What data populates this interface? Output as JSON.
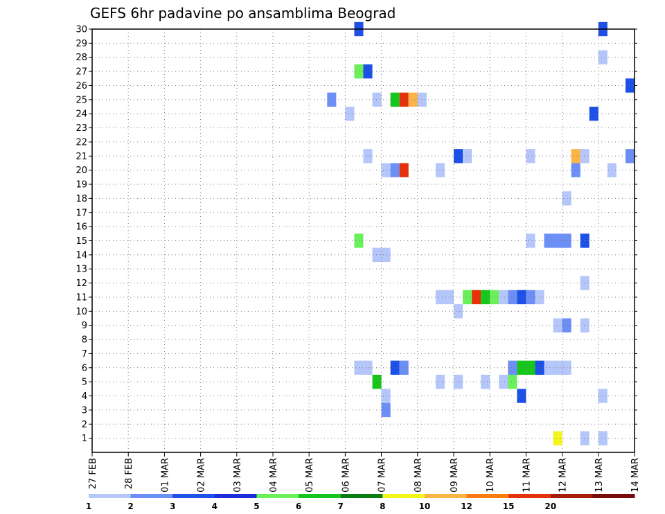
{
  "chart_data": {
    "type": "heatmap",
    "title": "GEFS 6hr padavine po ansamblima Beograd",
    "xlabel": "",
    "ylabel": "",
    "grid": true,
    "x_tick_labels": [
      "27 FEB",
      "28 FEB",
      "01 MAR",
      "02 MAR",
      "03 MAR",
      "04 MAR",
      "05 MAR",
      "06 MAR",
      "07 MAR",
      "08 MAR",
      "09 MAR",
      "10 MAR",
      "11 MAR",
      "12 MAR",
      "13 MAR",
      "14 MAR"
    ],
    "y_tick_labels": [
      "1",
      "2",
      "3",
      "4",
      "5",
      "6",
      "7",
      "8",
      "9",
      "10",
      "11",
      "12",
      "13",
      "14",
      "15",
      "16",
      "17",
      "18",
      "19",
      "20",
      "21",
      "22",
      "23",
      "24",
      "25",
      "26",
      "27",
      "28",
      "29",
      "30"
    ],
    "x_unit": "6-hour step from 27 FEB 00Z",
    "color_levels": [
      1,
      2,
      3,
      4,
      5,
      6,
      7,
      8,
      10,
      12,
      15,
      20
    ],
    "color_scale": [
      "#b4c6fa",
      "#6b8ff5",
      "#1d50e6",
      "#1c2ddc",
      "#6af05a",
      "#16c61a",
      "#0a7d14",
      "#f5f51e",
      "#fcb446",
      "#fa7d14",
      "#e6320a",
      "#a51e0a",
      "#780a0a"
    ],
    "cells": [
      {
        "member": 30,
        "step": 30,
        "level": 3
      },
      {
        "member": 30,
        "step": 57,
        "level": 3
      },
      {
        "member": 28,
        "step": 57,
        "level": 1
      },
      {
        "member": 27,
        "step": 30,
        "level": 5
      },
      {
        "member": 27,
        "step": 31,
        "level": 3
      },
      {
        "member": 26,
        "step": 60,
        "level": 3
      },
      {
        "member": 25,
        "step": 27,
        "level": 2
      },
      {
        "member": 25,
        "step": 32,
        "level": 1
      },
      {
        "member": 25,
        "step": 34,
        "level": 6
      },
      {
        "member": 25,
        "step": 35,
        "level": 15
      },
      {
        "member": 25,
        "step": 36,
        "level": 10
      },
      {
        "member": 25,
        "step": 37,
        "level": 1
      },
      {
        "member": 24,
        "step": 29,
        "level": 1
      },
      {
        "member": 24,
        "step": 56,
        "level": 3
      },
      {
        "member": 21,
        "step": 31,
        "level": 1
      },
      {
        "member": 21,
        "step": 41,
        "level": 3
      },
      {
        "member": 21,
        "step": 42,
        "level": 1
      },
      {
        "member": 21,
        "step": 49,
        "level": 1
      },
      {
        "member": 21,
        "step": 54,
        "level": 10
      },
      {
        "member": 21,
        "step": 55,
        "level": 1
      },
      {
        "member": 21,
        "step": 60,
        "level": 2
      },
      {
        "member": 20,
        "step": 33,
        "level": 1
      },
      {
        "member": 20,
        "step": 34,
        "level": 2
      },
      {
        "member": 20,
        "step": 35,
        "level": 15
      },
      {
        "member": 20,
        "step": 39,
        "level": 1
      },
      {
        "member": 20,
        "step": 54,
        "level": 2
      },
      {
        "member": 20,
        "step": 58,
        "level": 1
      },
      {
        "member": 18,
        "step": 53,
        "level": 1
      },
      {
        "member": 15,
        "step": 30,
        "level": 5
      },
      {
        "member": 15,
        "step": 49,
        "level": 1
      },
      {
        "member": 15,
        "step": 51,
        "level": 2
      },
      {
        "member": 15,
        "step": 52,
        "level": 2
      },
      {
        "member": 15,
        "step": 53,
        "level": 2
      },
      {
        "member": 15,
        "step": 55,
        "level": 3
      },
      {
        "member": 14,
        "step": 32,
        "level": 1
      },
      {
        "member": 14,
        "step": 33,
        "level": 1
      },
      {
        "member": 12,
        "step": 55,
        "level": 1
      },
      {
        "member": 11,
        "step": 39,
        "level": 1
      },
      {
        "member": 11,
        "step": 40,
        "level": 1
      },
      {
        "member": 11,
        "step": 42,
        "level": 5
      },
      {
        "member": 11,
        "step": 43,
        "level": 15
      },
      {
        "member": 11,
        "step": 44,
        "level": 6
      },
      {
        "member": 11,
        "step": 45,
        "level": 5
      },
      {
        "member": 11,
        "step": 46,
        "level": 1
      },
      {
        "member": 11,
        "step": 47,
        "level": 2
      },
      {
        "member": 11,
        "step": 48,
        "level": 3
      },
      {
        "member": 11,
        "step": 49,
        "level": 2
      },
      {
        "member": 11,
        "step": 50,
        "level": 1
      },
      {
        "member": 10,
        "step": 41,
        "level": 1
      },
      {
        "member": 9,
        "step": 52,
        "level": 1
      },
      {
        "member": 9,
        "step": 53,
        "level": 2
      },
      {
        "member": 9,
        "step": 55,
        "level": 1
      },
      {
        "member": 6,
        "step": 30,
        "level": 1
      },
      {
        "member": 6,
        "step": 31,
        "level": 1
      },
      {
        "member": 6,
        "step": 34,
        "level": 3
      },
      {
        "member": 6,
        "step": 35,
        "level": 2
      },
      {
        "member": 6,
        "step": 47,
        "level": 2
      },
      {
        "member": 6,
        "step": 48,
        "level": 6
      },
      {
        "member": 6,
        "step": 49,
        "level": 6
      },
      {
        "member": 6,
        "step": 50,
        "level": 3
      },
      {
        "member": 6,
        "step": 51,
        "level": 1
      },
      {
        "member": 6,
        "step": 52,
        "level": 1
      },
      {
        "member": 6,
        "step": 53,
        "level": 1
      },
      {
        "member": 5,
        "step": 32,
        "level": 6
      },
      {
        "member": 5,
        "step": 39,
        "level": 1
      },
      {
        "member": 5,
        "step": 41,
        "level": 1
      },
      {
        "member": 5,
        "step": 44,
        "level": 1
      },
      {
        "member": 5,
        "step": 46,
        "level": 1
      },
      {
        "member": 5,
        "step": 47,
        "level": 5
      },
      {
        "member": 4,
        "step": 33,
        "level": 1
      },
      {
        "member": 4,
        "step": 48,
        "level": 3
      },
      {
        "member": 4,
        "step": 57,
        "level": 1
      },
      {
        "member": 3,
        "step": 33,
        "level": 2
      },
      {
        "member": 1,
        "step": 52,
        "level": 8
      },
      {
        "member": 1,
        "step": 55,
        "level": 1
      },
      {
        "member": 1,
        "step": 57,
        "level": 1
      }
    ]
  }
}
